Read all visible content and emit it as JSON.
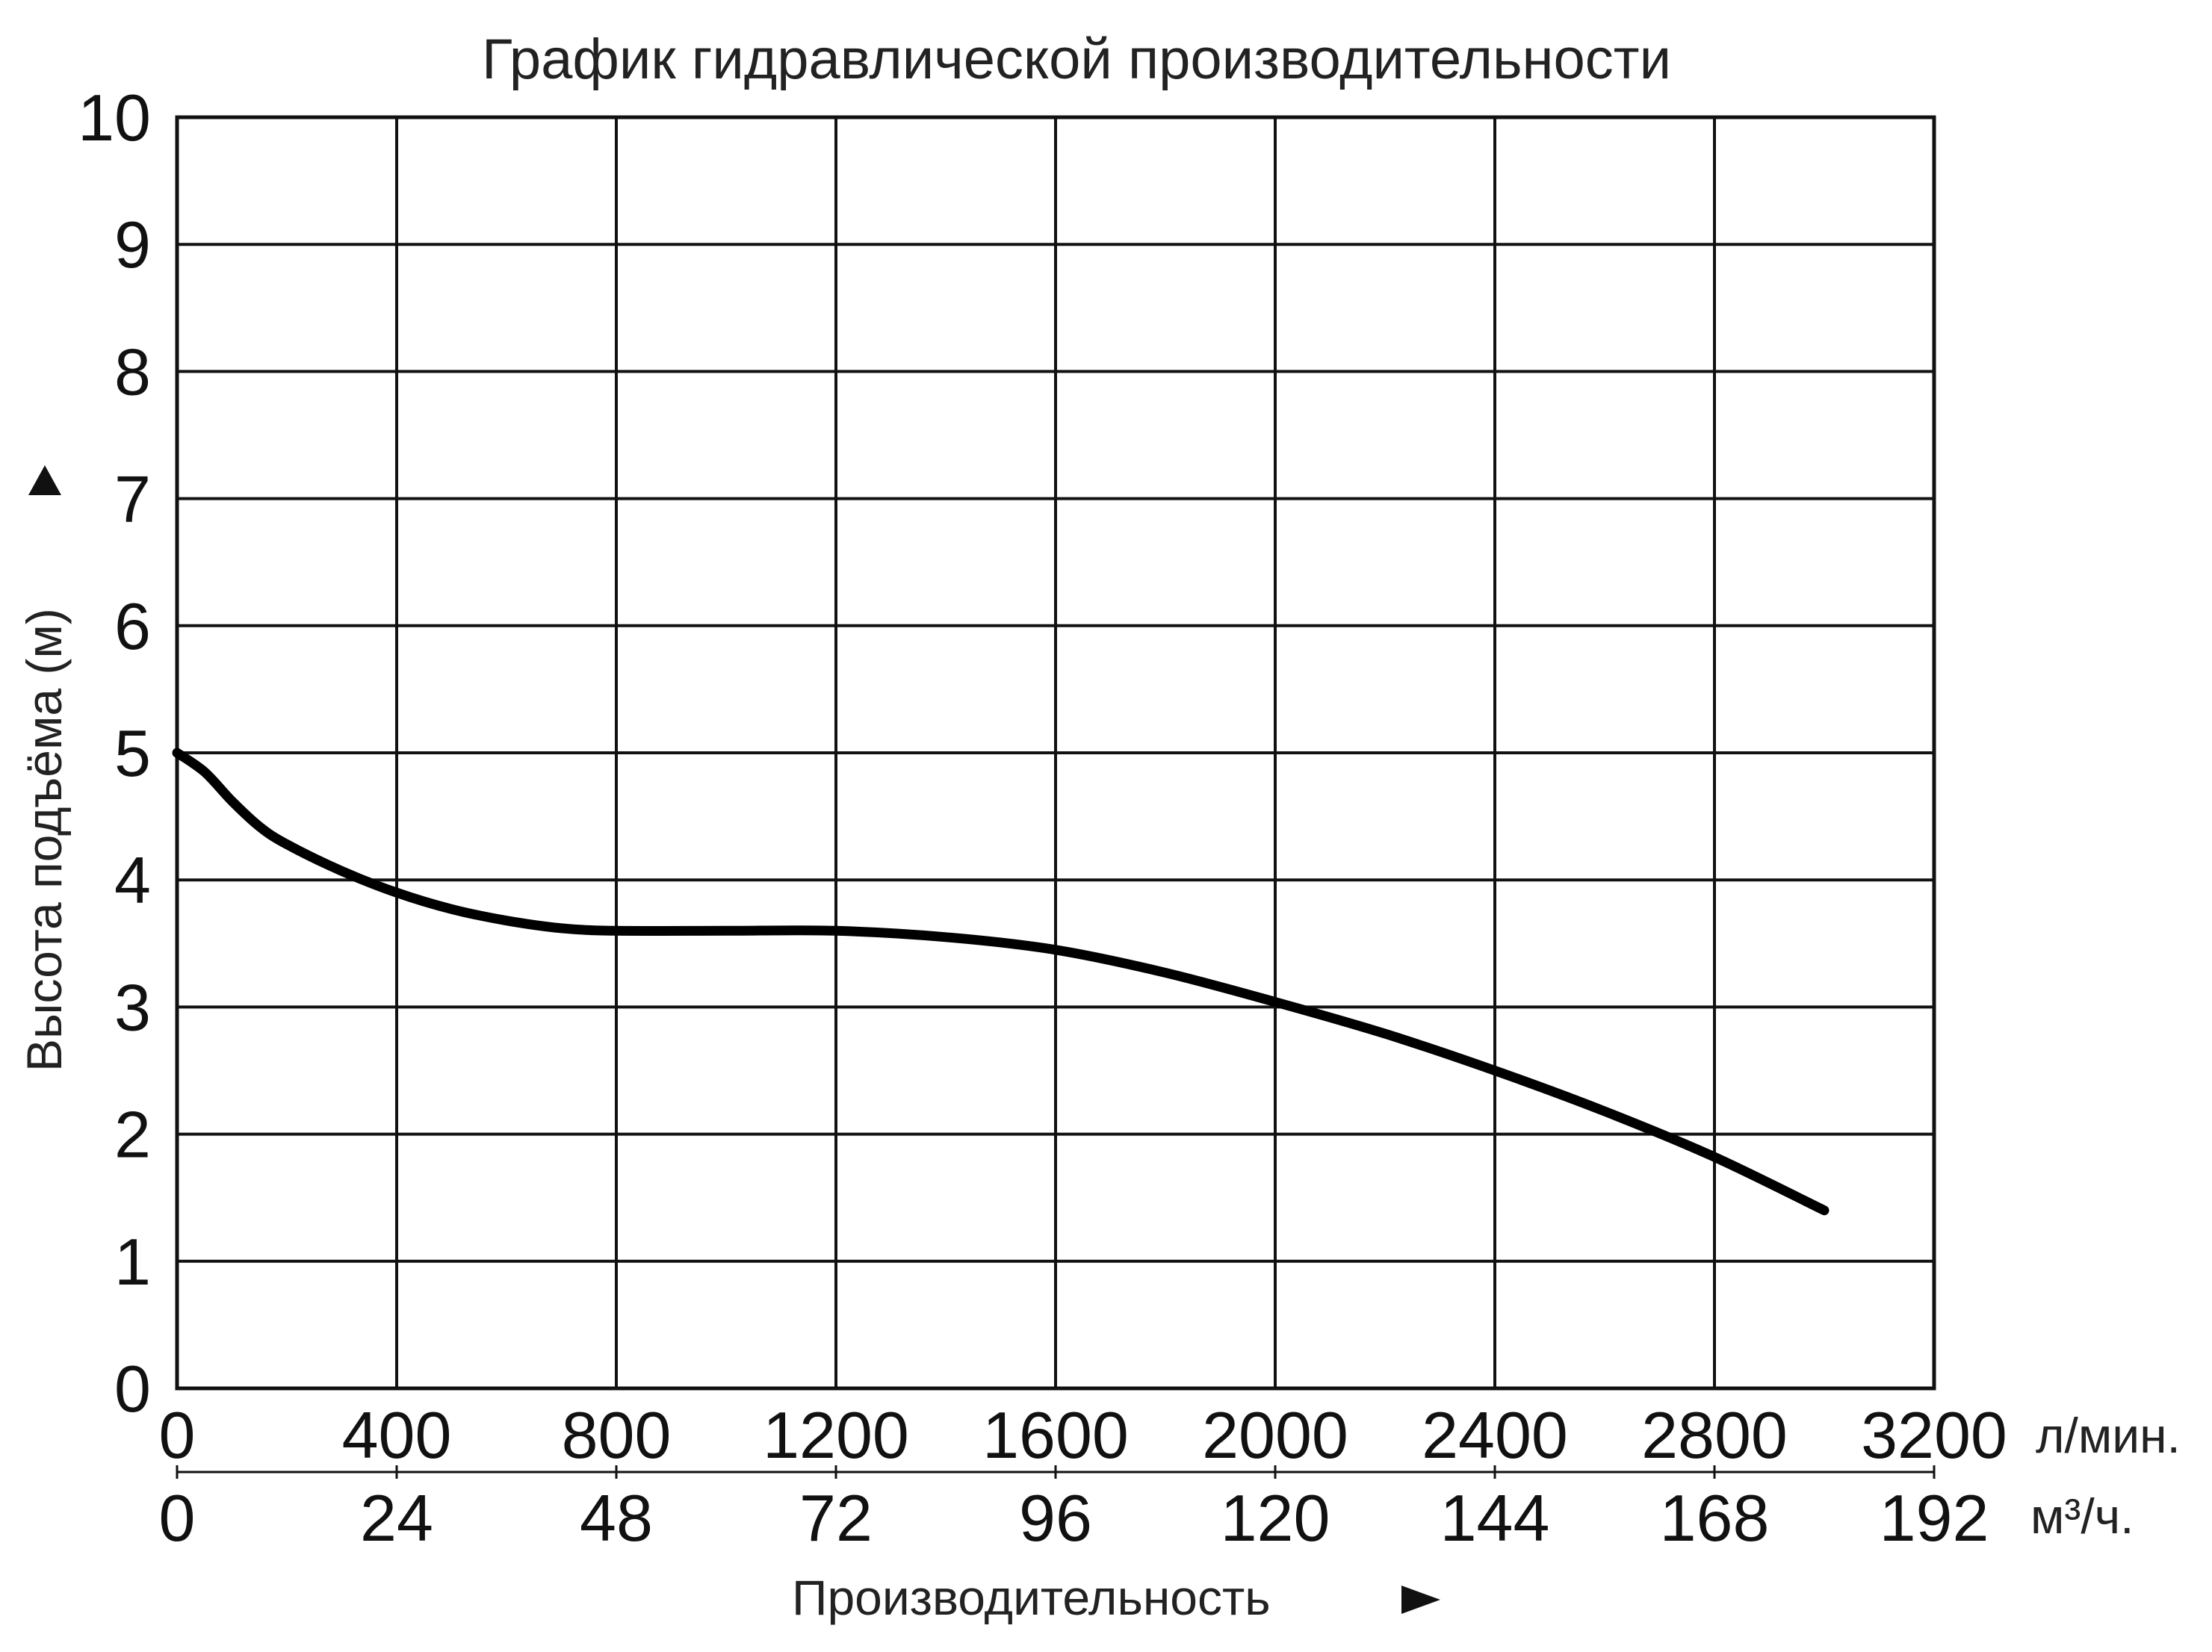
{
  "chart_data": {
    "type": "line",
    "title": "График гидравлической производительности",
    "ylabel": "Высота подъёма (м)",
    "xlabel": "Производительность",
    "ylim": [
      0,
      10
    ],
    "xlim": [
      0,
      3200
    ],
    "grid": true,
    "y_ticks": [
      "0",
      "1",
      "2",
      "3",
      "4",
      "5",
      "6",
      "7",
      "8",
      "9",
      "10"
    ],
    "x_ticks_lpm": [
      "0",
      "400",
      "800",
      "1200",
      "1600",
      "2000",
      "2400",
      "2800",
      "3200"
    ],
    "x_unit_lpm": "л/мин.",
    "x_ticks_m3h": [
      "0",
      "24",
      "48",
      "72",
      "96",
      "120",
      "144",
      "168",
      "192"
    ],
    "x_unit_m3h": "м³/ч.",
    "series": [
      {
        "x": [
          0,
          50,
          100,
          150,
          200,
          300,
          400,
          500,
          600,
          700,
          800,
          1000,
          1200,
          1400,
          1600,
          1800,
          2000,
          2200,
          2400,
          2600,
          2800,
          3000
        ],
        "y": [
          5.0,
          4.85,
          4.62,
          4.42,
          4.28,
          4.07,
          3.9,
          3.77,
          3.68,
          3.62,
          3.6,
          3.6,
          3.6,
          3.55,
          3.45,
          3.27,
          3.04,
          2.79,
          2.5,
          2.18,
          1.82,
          1.4
        ]
      }
    ]
  }
}
